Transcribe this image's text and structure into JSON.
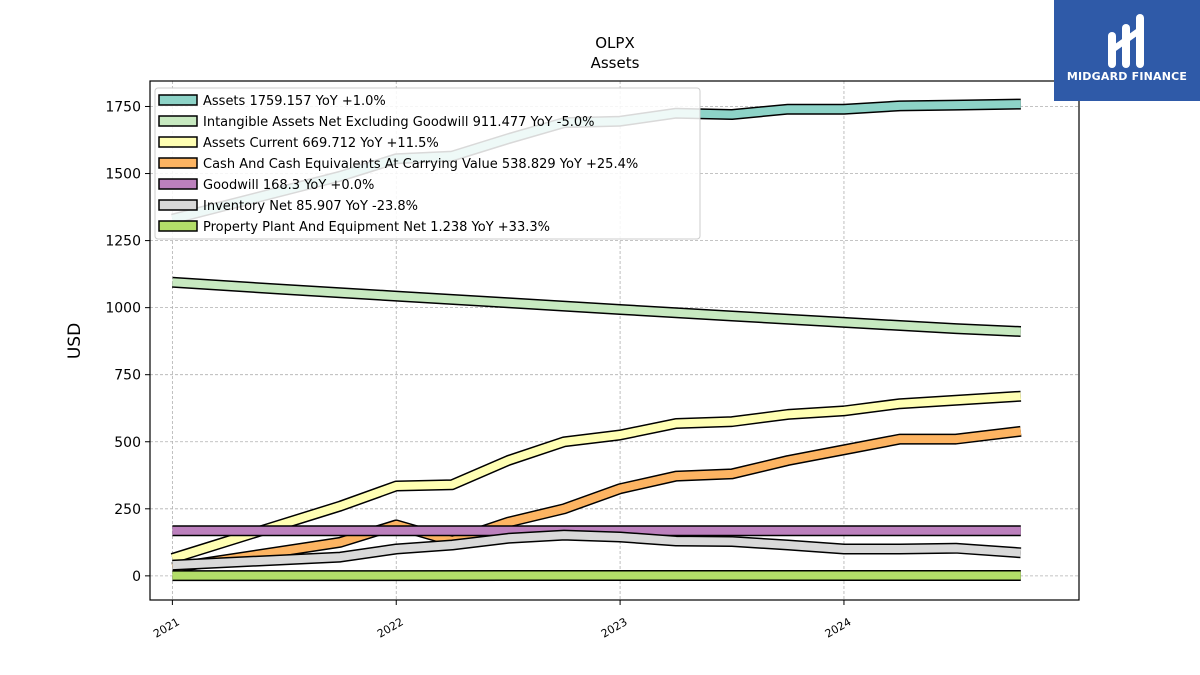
{
  "chart_data": {
    "type": "line",
    "title": "OLPX",
    "subtitle": "Assets",
    "ylabel": "USD",
    "xlabel": "",
    "ylim": [
      -90,
      1845
    ],
    "xlim": [
      2020.9,
      2025.05
    ],
    "yticks": [
      0,
      250,
      500,
      750,
      1000,
      1250,
      1500,
      1750
    ],
    "xticks": [
      {
        "label": "2021",
        "value": 2021.0
      },
      {
        "label": "2022",
        "value": 2022.0
      },
      {
        "label": "2023",
        "value": 2023.0
      },
      {
        "label": "2024",
        "value": 2024.0
      }
    ],
    "grid": true,
    "legend_position": "top-left",
    "series": [
      {
        "name": "Assets",
        "legend": "Assets  1759.157 YoY +1.0%",
        "color": "#8dd3c7",
        "points": [
          [
            2021.0,
            1330
          ],
          [
            2021.75,
            1490
          ],
          [
            2022.0,
            1555
          ],
          [
            2022.25,
            1565
          ],
          [
            2022.5,
            1630
          ],
          [
            2022.75,
            1690
          ],
          [
            2023.0,
            1695
          ],
          [
            2023.25,
            1725
          ],
          [
            2023.5,
            1720
          ],
          [
            2023.75,
            1740
          ],
          [
            2024.0,
            1740
          ],
          [
            2024.25,
            1752
          ],
          [
            2024.5,
            1755
          ],
          [
            2024.79,
            1759
          ]
        ]
      },
      {
        "name": "Intangible Assets Net Excluding Goodwill",
        "legend": "Intangible Assets Net Excluding Goodwill  911.477 YoY -5.0%",
        "color": "#c7e9c0",
        "points": [
          [
            2021.0,
            1095
          ],
          [
            2021.5,
            1068
          ],
          [
            2022.0,
            1043
          ],
          [
            2022.5,
            1018
          ],
          [
            2023.0,
            993
          ],
          [
            2023.5,
            969
          ],
          [
            2024.0,
            945
          ],
          [
            2024.5,
            922
          ],
          [
            2024.79,
            911
          ]
        ]
      },
      {
        "name": "Assets Current",
        "legend": "Assets Current  669.712 YoY +11.5%",
        "color": "#ffffb3",
        "points": [
          [
            2021.0,
            65
          ],
          [
            2021.75,
            260
          ],
          [
            2022.0,
            335
          ],
          [
            2022.25,
            340
          ],
          [
            2022.5,
            430
          ],
          [
            2022.75,
            500
          ],
          [
            2023.0,
            525
          ],
          [
            2023.25,
            568
          ],
          [
            2023.5,
            575
          ],
          [
            2023.75,
            602
          ],
          [
            2024.0,
            615
          ],
          [
            2024.25,
            642
          ],
          [
            2024.5,
            655
          ],
          [
            2024.79,
            670
          ]
        ]
      },
      {
        "name": "Cash And Cash Equivalents At Carrying Value",
        "legend": "Cash And Cash Equivalents At Carrying Value  538.829 YoY +25.4%",
        "color": "#fdb462",
        "points": [
          [
            2021.0,
            30
          ],
          [
            2021.75,
            125
          ],
          [
            2022.0,
            190
          ],
          [
            2022.25,
            130
          ],
          [
            2022.5,
            200
          ],
          [
            2022.75,
            250
          ],
          [
            2023.0,
            325
          ],
          [
            2023.25,
            372
          ],
          [
            2023.5,
            380
          ],
          [
            2023.75,
            430
          ],
          [
            2024.0,
            470
          ],
          [
            2024.25,
            510
          ],
          [
            2024.5,
            510
          ],
          [
            2024.79,
            539
          ]
        ]
      },
      {
        "name": "Goodwill",
        "legend": "Goodwill  168.3 YoY +0.0%",
        "color": "#bc80bd",
        "points": [
          [
            2021.0,
            168.3
          ],
          [
            2024.79,
            168.3
          ]
        ]
      },
      {
        "name": "Inventory Net",
        "legend": "Inventory Net  85.907 YoY -23.8%",
        "color": "#d9d9d9",
        "points": [
          [
            2021.0,
            40
          ],
          [
            2021.75,
            70
          ],
          [
            2022.0,
            100
          ],
          [
            2022.25,
            115
          ],
          [
            2022.5,
            140
          ],
          [
            2022.75,
            152
          ],
          [
            2023.0,
            145
          ],
          [
            2023.25,
            130
          ],
          [
            2023.5,
            128
          ],
          [
            2023.75,
            115
          ],
          [
            2024.0,
            100
          ],
          [
            2024.25,
            100
          ],
          [
            2024.5,
            103
          ],
          [
            2024.79,
            86
          ]
        ]
      },
      {
        "name": "Property Plant And Equipment Net",
        "legend": "Property Plant And Equipment Net  1.238 YoY +33.3%",
        "color": "#b3de69",
        "points": [
          [
            2021.0,
            0.9
          ],
          [
            2024.79,
            1.238
          ]
        ]
      }
    ]
  },
  "logo": {
    "text": "MIDGARD FINANCE",
    "background": "#2f5aa8"
  }
}
